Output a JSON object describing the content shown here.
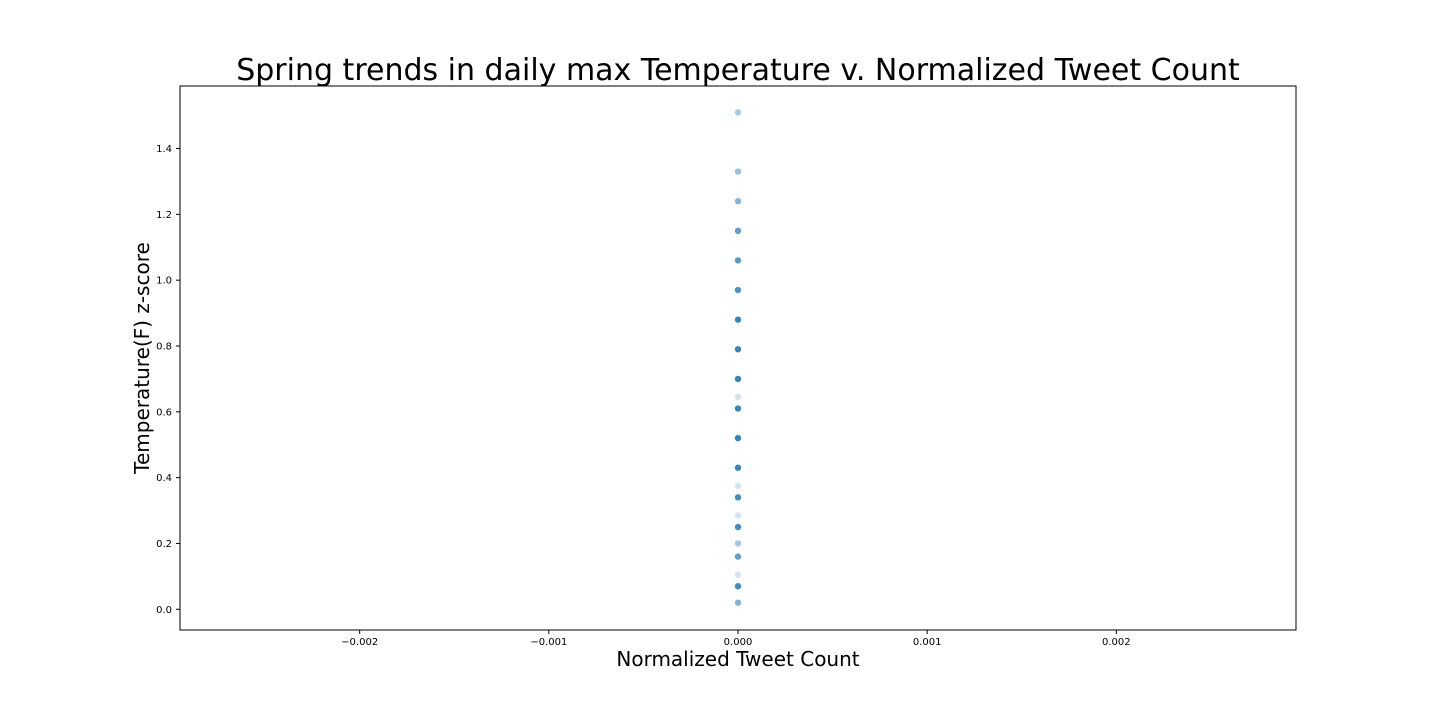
{
  "chart_data": {
    "type": "scatter",
    "title": "Spring trends in daily max Temperature v. Normalized Tweet Count",
    "xlabel": "Normalized Tweet Count",
    "ylabel": "Temperature(F) z-score",
    "xlim": [
      -0.00295,
      0.00295
    ],
    "ylim": [
      -0.063,
      1.59
    ],
    "xticks": [
      -0.002,
      -0.001,
      0.0,
      0.001,
      0.002
    ],
    "xtick_labels": [
      "−0.002",
      "−0.001",
      "0.000",
      "0.001",
      "0.002"
    ],
    "yticks": [
      0.0,
      0.2,
      0.4,
      0.6,
      0.8,
      1.0,
      1.2,
      1.4
    ],
    "ytick_labels": [
      "0.0",
      "0.2",
      "0.4",
      "0.6",
      "0.8",
      "1.0",
      "1.2",
      "1.4"
    ],
    "grid": false,
    "point_color": "#1f77b4",
    "points": [
      {
        "x": 0.0,
        "y": 1.51,
        "alpha": 0.4
      },
      {
        "x": 0.0,
        "y": 1.33,
        "alpha": 0.45
      },
      {
        "x": 0.0,
        "y": 1.24,
        "alpha": 0.55
      },
      {
        "x": 0.0,
        "y": 1.15,
        "alpha": 0.7
      },
      {
        "x": 0.0,
        "y": 1.06,
        "alpha": 0.75
      },
      {
        "x": 0.0,
        "y": 0.97,
        "alpha": 0.8
      },
      {
        "x": 0.0,
        "y": 0.88,
        "alpha": 0.9
      },
      {
        "x": 0.0,
        "y": 0.79,
        "alpha": 0.9
      },
      {
        "x": 0.0,
        "y": 0.7,
        "alpha": 0.9
      },
      {
        "x": 0.0,
        "y": 0.645,
        "alpha": 0.2
      },
      {
        "x": 0.0,
        "y": 0.61,
        "alpha": 0.9
      },
      {
        "x": 0.0,
        "y": 0.52,
        "alpha": 0.9
      },
      {
        "x": 0.0,
        "y": 0.43,
        "alpha": 0.9
      },
      {
        "x": 0.0,
        "y": 0.375,
        "alpha": 0.2
      },
      {
        "x": 0.0,
        "y": 0.34,
        "alpha": 0.85
      },
      {
        "x": 0.0,
        "y": 0.285,
        "alpha": 0.2
      },
      {
        "x": 0.0,
        "y": 0.25,
        "alpha": 0.85
      },
      {
        "x": 0.0,
        "y": 0.2,
        "alpha": 0.4
      },
      {
        "x": 0.0,
        "y": 0.16,
        "alpha": 0.7
      },
      {
        "x": 0.0,
        "y": 0.105,
        "alpha": 0.2
      },
      {
        "x": 0.0,
        "y": 0.07,
        "alpha": 0.85
      },
      {
        "x": 0.0,
        "y": 0.02,
        "alpha": 0.55
      }
    ]
  }
}
